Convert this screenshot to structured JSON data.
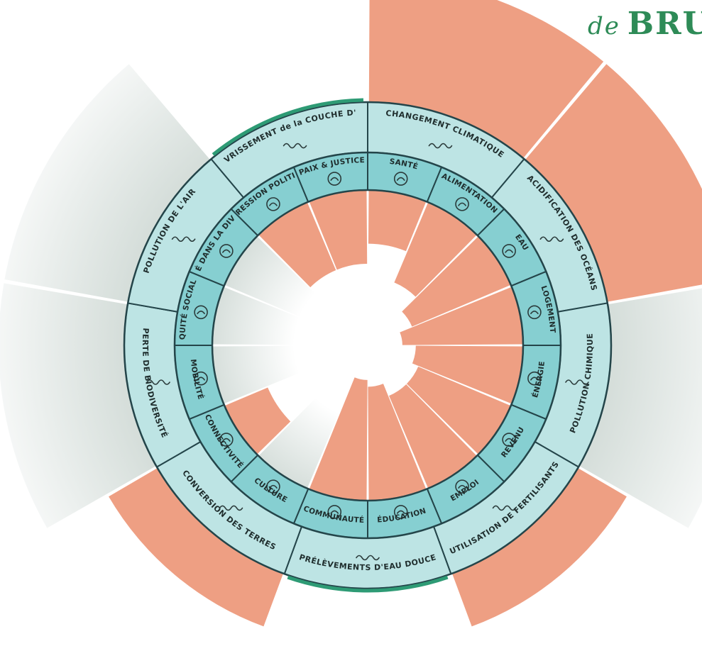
{
  "title": {
    "lead": "de",
    "main": "BRU"
  },
  "colors": {
    "overshoot": "#ee9f83",
    "neutral": "#d3dcd8",
    "ring_outer": "#bde4e4",
    "ring_inner": "#86cfd1",
    "ring_border": "#24454a",
    "accent_arc": "#2e9b75"
  },
  "ecological_ceiling": [
    {
      "label": "CHANGEMENT CLIMATIQUE",
      "status": "overshoot",
      "level": 1.0
    },
    {
      "label": "ACIDIFICATION DES OCÉANS",
      "status": "overshoot",
      "level": 1.0
    },
    {
      "label": "POLLUTION CHIMIQUE",
      "status": "unknown",
      "level": 1.0
    },
    {
      "label": "UTILISATION DE FERTILISANTS",
      "status": "overshoot",
      "level": 0.45
    },
    {
      "label": "PRÉLÈVEMENTS D'EAU DOUCE",
      "status": "within",
      "level": 0.0
    },
    {
      "label": "CONVERSION DES TERRES",
      "status": "overshoot",
      "level": 0.45
    },
    {
      "label": "PERTE DE BIODIVERSITÉ",
      "status": "unknown",
      "level": 1.0
    },
    {
      "label": "POLLUTION DE L'AIR",
      "status": "unknown",
      "level": 1.0
    },
    {
      "label": "APPAUVRISSEMENT de la COUCHE D'OZONE",
      "status": "within",
      "level": 0.0
    }
  ],
  "social_foundation": [
    {
      "label": "SANTÉ",
      "status": "shortfall",
      "level": 0.4
    },
    {
      "label": "ALIMENTATION",
      "status": "shortfall",
      "level": 0.65
    },
    {
      "label": "EAU",
      "status": "shortfall",
      "level": 0.8
    },
    {
      "label": "LOGEMENT",
      "status": "shortfall",
      "level": 0.9
    },
    {
      "label": "ÉNERGIE",
      "status": "shortfall",
      "level": 0.8
    },
    {
      "label": "REVENU",
      "status": "shortfall",
      "level": 0.75
    },
    {
      "label": "EMPLOI",
      "status": "shortfall",
      "level": 0.75
    },
    {
      "label": "ÉDUCATION",
      "status": "shortfall",
      "level": 0.85
    },
    {
      "label": "COMMUNAUTÉ",
      "status": "shortfall",
      "level": 0.9
    },
    {
      "label": "CULTURE",
      "status": "unknown",
      "level": 1.0
    },
    {
      "label": "CONNECTIVITÉ",
      "status": "shortfall",
      "level": 0.35
    },
    {
      "label": "MOBILITÉ",
      "status": "unknown",
      "level": 0.8
    },
    {
      "label": "ÉQUITÉ SOCIALE",
      "status": "unknown",
      "level": 0.85
    },
    {
      "label": "ÉGALITÉ DANS LA DIVERSITÉ",
      "status": "unknown",
      "level": 0.9
    },
    {
      "label": "EXPRESSION POLITIQUE",
      "status": "shortfall",
      "level": 0.55
    },
    {
      "label": "PAIX & JUSTICE",
      "status": "shortfall",
      "level": 0.55
    }
  ]
}
